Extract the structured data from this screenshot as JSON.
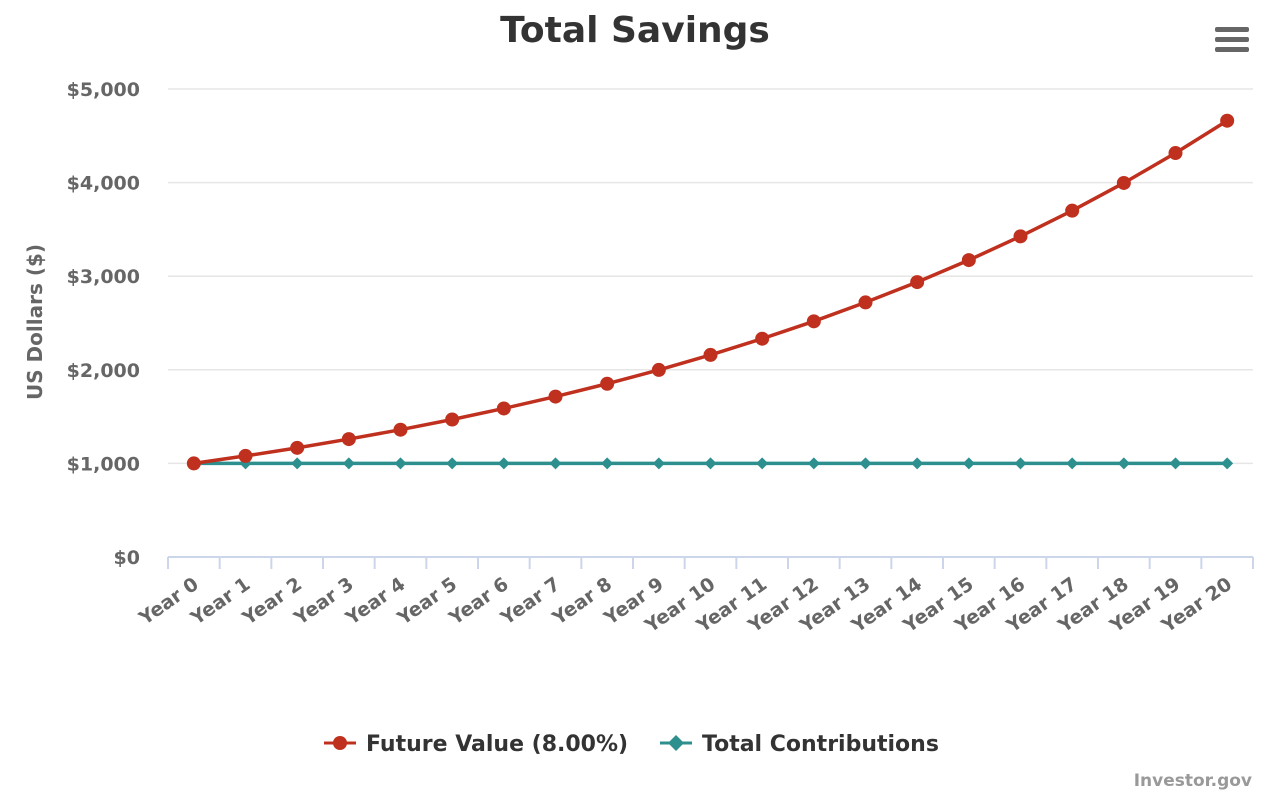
{
  "colors": {
    "future_value": "#c0301e",
    "total_contributions": "#2e8f8f",
    "grid": "#e6e6e6",
    "axis": "#ccd6eb"
  },
  "menu_icon": "hamburger-menu-icon",
  "credits": "Investor.gov",
  "chart_data": {
    "type": "line",
    "title": "Total Savings",
    "xlabel": "",
    "ylabel": "US Dollars ($)",
    "ylim": [
      0,
      5000
    ],
    "yticks": [
      "$0",
      "$1,000",
      "$2,000",
      "$3,000",
      "$4,000",
      "$5,000"
    ],
    "ytick_values": [
      0,
      1000,
      2000,
      3000,
      4000,
      5000
    ],
    "grid": true,
    "legend": "bottom-center",
    "categories": [
      "Year 0",
      "Year 1",
      "Year 2",
      "Year 3",
      "Year 4",
      "Year 5",
      "Year 6",
      "Year 7",
      "Year 8",
      "Year 9",
      "Year 10",
      "Year 11",
      "Year 12",
      "Year 13",
      "Year 14",
      "Year 15",
      "Year 16",
      "Year 17",
      "Year 18",
      "Year 19",
      "Year 20"
    ],
    "series": [
      {
        "name": "Future Value (8.00%)",
        "marker": "circle",
        "values": [
          1000,
          1080,
          1166,
          1260,
          1360,
          1469,
          1587,
          1714,
          1851,
          1999,
          2159,
          2332,
          2518,
          2720,
          2937,
          3172,
          3426,
          3700,
          3996,
          4316,
          4661
        ]
      },
      {
        "name": "Total Contributions",
        "marker": "diamond",
        "values": [
          1000,
          1000,
          1000,
          1000,
          1000,
          1000,
          1000,
          1000,
          1000,
          1000,
          1000,
          1000,
          1000,
          1000,
          1000,
          1000,
          1000,
          1000,
          1000,
          1000,
          1000
        ]
      }
    ]
  }
}
